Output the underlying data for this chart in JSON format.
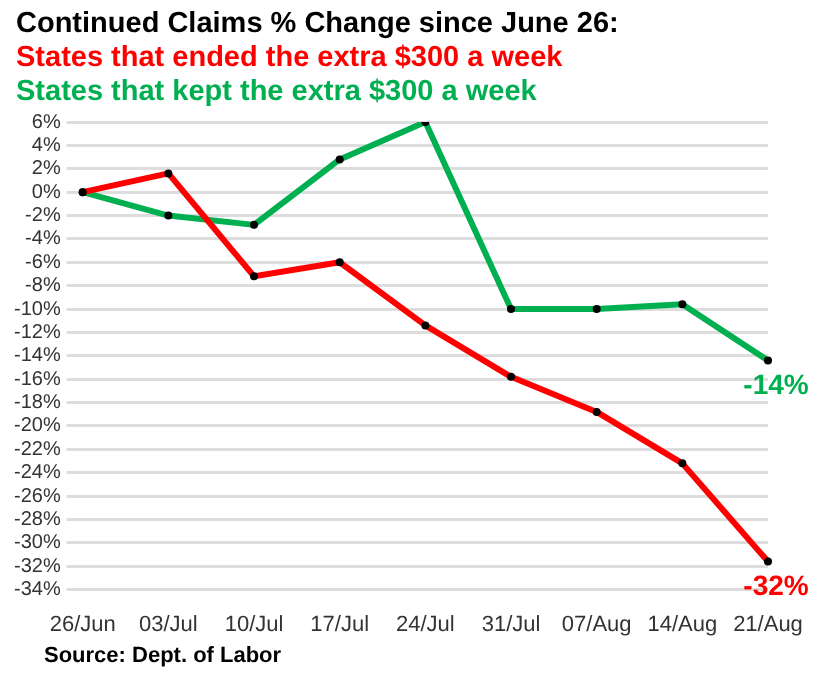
{
  "chart_data": {
    "type": "line",
    "title": "Continued Claims % Change since June 26:",
    "categories": [
      "26/Jun",
      "03/Jul",
      "10/Jul",
      "17/Jul",
      "24/Jul",
      "31/Jul",
      "07/Aug",
      "14/Aug",
      "21/Aug"
    ],
    "series": [
      {
        "name": "States that ended the extra $300 a week",
        "color": "#ff0000",
        "values": [
          0,
          1.6,
          -7.2,
          -6,
          -11.4,
          -15.8,
          -18.8,
          -23.2,
          -31.6
        ]
      },
      {
        "name": "States that kept the extra $300 a week",
        "color": "#00b050",
        "values": [
          0,
          -2,
          -2.8,
          2.8,
          6,
          -10,
          -10,
          -9.6,
          -14.4
        ]
      }
    ],
    "ylim": [
      -34,
      6
    ],
    "yticks": [
      {
        "value": 6,
        "label": "6%"
      },
      {
        "value": 4,
        "label": "4%"
      },
      {
        "value": 2,
        "label": "2%"
      },
      {
        "value": 0,
        "label": "0%"
      },
      {
        "value": -2,
        "label": "-2%"
      },
      {
        "value": -4,
        "label": "-4%"
      },
      {
        "value": -6,
        "label": "-6%"
      },
      {
        "value": -8,
        "label": "-8%"
      },
      {
        "value": -10,
        "label": "-10%"
      },
      {
        "value": -12,
        "label": "-12%"
      },
      {
        "value": -14,
        "label": "-14%"
      },
      {
        "value": -16,
        "label": "-16%"
      },
      {
        "value": -18,
        "label": "-18%"
      },
      {
        "value": -20,
        "label": "-20%"
      },
      {
        "value": -22,
        "label": "-22%"
      },
      {
        "value": -24,
        "label": "-24%"
      },
      {
        "value": -26,
        "label": "-26%"
      },
      {
        "value": -28,
        "label": "-28%"
      },
      {
        "value": -30,
        "label": "-30%"
      },
      {
        "value": -32,
        "label": "-32%"
      },
      {
        "value": -34,
        "label": "-34%"
      }
    ],
    "grid": "y",
    "legend": "top",
    "marker": "circle",
    "line_style": "solid",
    "annotations": [
      {
        "text": "-14%",
        "x": "21/Aug",
        "y": -14.4
      },
      {
        "text": "-32%",
        "x": "21/Aug",
        "y": -31.6
      },
      "Source: Dept. of Labor"
    ]
  }
}
